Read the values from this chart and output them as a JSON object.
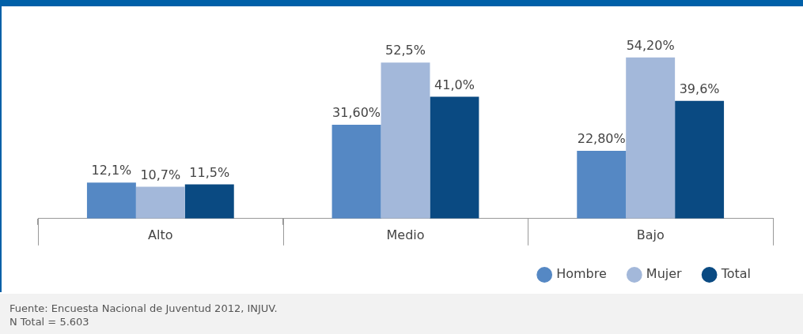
{
  "chart_data": {
    "type": "bar",
    "categories": [
      "Alto",
      "Medio",
      "Bajo"
    ],
    "series": [
      {
        "name": "Hombre",
        "color": "#5588c4",
        "values": [
          12.1,
          31.6,
          22.8
        ],
        "value_labels": [
          "12,1%",
          "31,60%",
          "22,80%"
        ]
      },
      {
        "name": "Mujer",
        "color": "#a3b8da",
        "values": [
          10.7,
          52.5,
          54.2
        ],
        "value_labels": [
          "10,7%",
          "52,5%",
          "54,20%"
        ]
      },
      {
        "name": "Total",
        "color": "#0a4a82",
        "values": [
          11.5,
          41.0,
          39.6
        ],
        "value_labels": [
          "11,5%",
          "41,0%",
          "39,6%"
        ]
      }
    ],
    "legend": "bottom right",
    "marker": "circle",
    "annotations": [
      "Fuente: Encuesta Nacional de Juventud 2012, INJUV.",
      "N Total = 5.603"
    ]
  }
}
